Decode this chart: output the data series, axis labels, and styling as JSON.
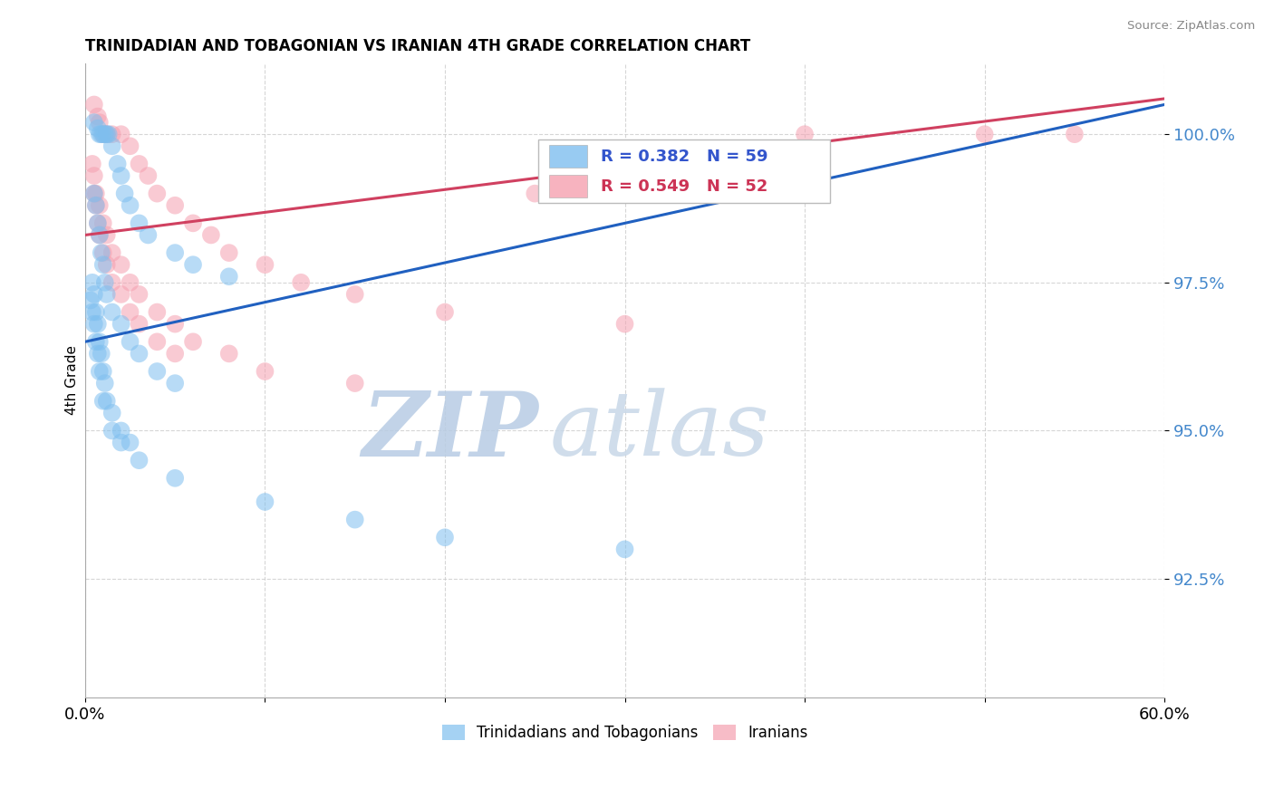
{
  "title": "TRINIDADIAN AND TOBAGONIAN VS IRANIAN 4TH GRADE CORRELATION CHART",
  "source": "Source: ZipAtlas.com",
  "ylabel": "4th Grade",
  "xlim": [
    0.0,
    60.0
  ],
  "ylim": [
    90.5,
    101.2
  ],
  "yticks": [
    92.5,
    95.0,
    97.5,
    100.0
  ],
  "ytick_labels": [
    "92.5%",
    "95.0%",
    "97.5%",
    "100.0%"
  ],
  "xticks": [
    0.0,
    10.0,
    20.0,
    30.0,
    40.0,
    50.0,
    60.0
  ],
  "blue_label": "Trinidadians and Tobagonians",
  "pink_label": "Iranians",
  "blue_color": "#7fbfef",
  "pink_color": "#f5a0b0",
  "blue_R": 0.382,
  "blue_N": 59,
  "pink_R": 0.549,
  "pink_N": 52,
  "blue_line_color": "#2060c0",
  "pink_line_color": "#e0406080",
  "blue_line_x0": 0.0,
  "blue_line_x1": 60.0,
  "blue_line_y0": 96.5,
  "blue_line_y1": 100.5,
  "pink_line_x0": 0.0,
  "pink_line_x1": 60.0,
  "pink_line_y0": 98.3,
  "pink_line_y1": 100.6,
  "background_color": "#ffffff",
  "grid_color": "#cccccc",
  "watermark_zip_color": "#b8cce4",
  "watermark_atlas_color": "#c8d8e8",
  "blue_scatter_x": [
    0.5,
    0.7,
    0.8,
    0.9,
    1.0,
    1.1,
    1.2,
    1.3,
    1.5,
    1.8,
    2.0,
    2.2,
    2.5,
    3.0,
    3.5,
    5.0,
    6.0,
    8.0,
    0.5,
    0.6,
    0.7,
    0.8,
    0.9,
    1.0,
    1.1,
    1.2,
    1.5,
    2.0,
    2.5,
    3.0,
    4.0,
    5.0,
    0.4,
    0.5,
    0.6,
    0.7,
    0.8,
    0.9,
    1.0,
    1.1,
    1.2,
    1.5,
    2.0,
    2.5,
    0.3,
    0.4,
    0.5,
    0.6,
    0.7,
    0.8,
    1.0,
    1.5,
    2.0,
    3.0,
    5.0,
    10.0,
    15.0,
    20.0,
    30.0
  ],
  "blue_scatter_y": [
    100.2,
    100.1,
    100.0,
    100.0,
    100.0,
    100.0,
    100.0,
    100.0,
    99.8,
    99.5,
    99.3,
    99.0,
    98.8,
    98.5,
    98.3,
    98.0,
    97.8,
    97.6,
    99.0,
    98.8,
    98.5,
    98.3,
    98.0,
    97.8,
    97.5,
    97.3,
    97.0,
    96.8,
    96.5,
    96.3,
    96.0,
    95.8,
    97.5,
    97.3,
    97.0,
    96.8,
    96.5,
    96.3,
    96.0,
    95.8,
    95.5,
    95.3,
    95.0,
    94.8,
    97.2,
    97.0,
    96.8,
    96.5,
    96.3,
    96.0,
    95.5,
    95.0,
    94.8,
    94.5,
    94.2,
    93.8,
    93.5,
    93.2,
    93.0
  ],
  "pink_scatter_x": [
    0.5,
    0.7,
    0.8,
    1.0,
    1.2,
    1.5,
    2.0,
    2.5,
    3.0,
    3.5,
    4.0,
    5.0,
    6.0,
    7.0,
    8.0,
    10.0,
    12.0,
    15.0,
    20.0,
    30.0,
    40.0,
    50.0,
    55.0,
    0.4,
    0.5,
    0.6,
    0.8,
    1.0,
    1.2,
    1.5,
    2.0,
    2.5,
    3.0,
    4.0,
    5.0,
    6.0,
    8.0,
    10.0,
    15.0,
    0.5,
    0.6,
    0.7,
    0.8,
    1.0,
    1.2,
    1.5,
    2.0,
    2.5,
    3.0,
    4.0,
    5.0,
    25.0
  ],
  "pink_scatter_y": [
    100.5,
    100.3,
    100.2,
    100.0,
    100.0,
    100.0,
    100.0,
    99.8,
    99.5,
    99.3,
    99.0,
    98.8,
    98.5,
    98.3,
    98.0,
    97.8,
    97.5,
    97.3,
    97.0,
    96.8,
    100.0,
    100.0,
    100.0,
    99.5,
    99.3,
    99.0,
    98.8,
    98.5,
    98.3,
    98.0,
    97.8,
    97.5,
    97.3,
    97.0,
    96.8,
    96.5,
    96.3,
    96.0,
    95.8,
    99.0,
    98.8,
    98.5,
    98.3,
    98.0,
    97.8,
    97.5,
    97.3,
    97.0,
    96.8,
    96.5,
    96.3,
    99.0
  ]
}
